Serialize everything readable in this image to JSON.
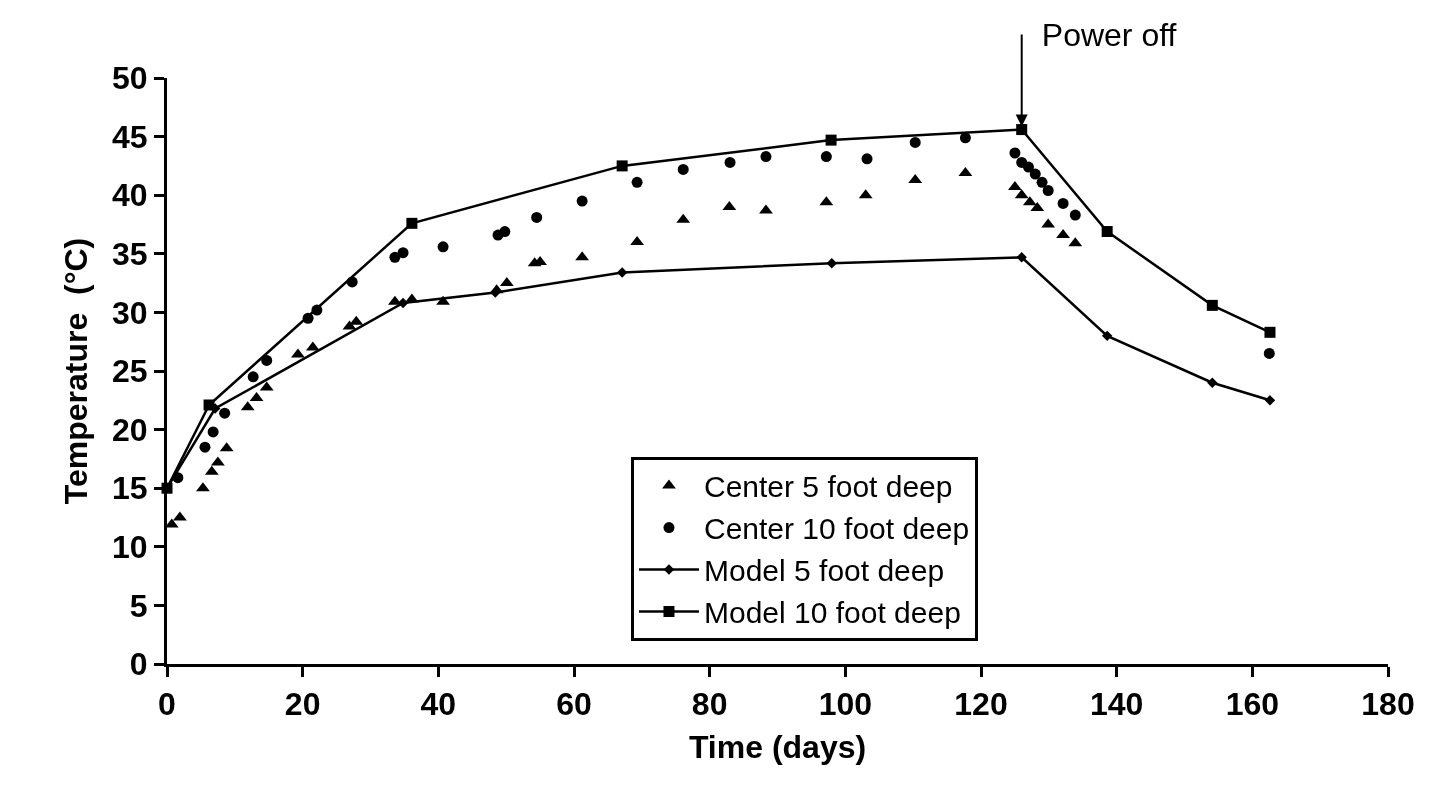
{
  "chart_data": {
    "type": "scatter",
    "xlabel": "Time (days)",
    "ylabel": "Temperature  (°C)",
    "xlim": [
      0,
      180
    ],
    "xticks": [
      0,
      20,
      40,
      60,
      80,
      100,
      120,
      140,
      160,
      180
    ],
    "ylim": [
      0,
      50
    ],
    "yticks": [
      0,
      5,
      10,
      15,
      20,
      25,
      30,
      35,
      40,
      45,
      50
    ],
    "legend": "bottom right",
    "annotations": [
      {
        "text": "Power off",
        "x": 126,
        "y": 45.6
      }
    ],
    "series": [
      {
        "name": "Center 5 foot deep",
        "marker": "triangle",
        "color": "#000000",
        "x": [
          0.7,
          1.9,
          5.3,
          6.6,
          7.5,
          8.8,
          11.9,
          13.2,
          14.7,
          19.3,
          21.5,
          26.9,
          27.9,
          33.6,
          36.1,
          40.7,
          48.6,
          50.1,
          54.2,
          55.0,
          61.2,
          69.3,
          76.1,
          82.9,
          88.3,
          97.2,
          103.0,
          110.3,
          117.7,
          125.0,
          126.0,
          127.2,
          128.3,
          129.9,
          132.1,
          133.9
        ],
        "values": [
          11.9,
          12.5,
          15.0,
          16.4,
          17.2,
          18.4,
          21.9,
          22.7,
          23.6,
          26.4,
          27.0,
          28.8,
          29.2,
          30.9,
          31.1,
          30.9,
          31.9,
          32.5,
          34.2,
          34.3,
          34.7,
          36.0,
          37.9,
          39.0,
          38.7,
          39.4,
          40.0,
          41.3,
          41.9,
          40.7,
          40.0,
          39.4,
          38.9,
          37.5,
          36.6,
          35.9
        ]
      },
      {
        "name": "Center 10 foot deep",
        "marker": "circle",
        "color": "#000000",
        "x": [
          1.6,
          5.6,
          6.8,
          8.5,
          12.7,
          14.7,
          20.8,
          22.1,
          27.3,
          33.6,
          34.8,
          40.7,
          48.8,
          49.8,
          54.5,
          61.2,
          69.3,
          76.1,
          83.0,
          88.3,
          97.2,
          103.2,
          110.3,
          117.7,
          125.0,
          126.0,
          127.0,
          128.0,
          129.0,
          129.9,
          132.1,
          133.9,
          162.5
        ],
        "values": [
          15.9,
          18.5,
          19.8,
          21.4,
          24.5,
          25.9,
          29.5,
          30.2,
          32.6,
          34.7,
          35.1,
          35.6,
          36.6,
          36.9,
          38.1,
          39.5,
          41.1,
          42.2,
          42.8,
          43.3,
          43.3,
          43.1,
          44.5,
          44.9,
          43.6,
          42.8,
          42.4,
          41.8,
          41.1,
          40.4,
          39.3,
          38.3,
          26.5
        ]
      },
      {
        "name": "Model 5 foot deep",
        "type": "line",
        "marker": "diamond",
        "line_style": "solid",
        "color": "#000000",
        "x": [
          0,
          7.1,
          34.8,
          48.4,
          67.1,
          98.0,
          126.0,
          138.6,
          154.1,
          162.6
        ],
        "values": [
          15.0,
          21.8,
          30.8,
          31.7,
          33.4,
          34.2,
          34.7,
          28.0,
          24.0,
          22.5
        ]
      },
      {
        "name": "Model 10 foot deep",
        "type": "line",
        "marker": "square",
        "line_style": "solid",
        "color": "#000000",
        "x": [
          0,
          6.2,
          36.1,
          67.1,
          97.9,
          126.0,
          138.6,
          154.1,
          162.6
        ],
        "values": [
          15.0,
          22.1,
          37.6,
          42.5,
          44.7,
          45.6,
          36.9,
          30.6,
          28.3
        ]
      }
    ]
  }
}
